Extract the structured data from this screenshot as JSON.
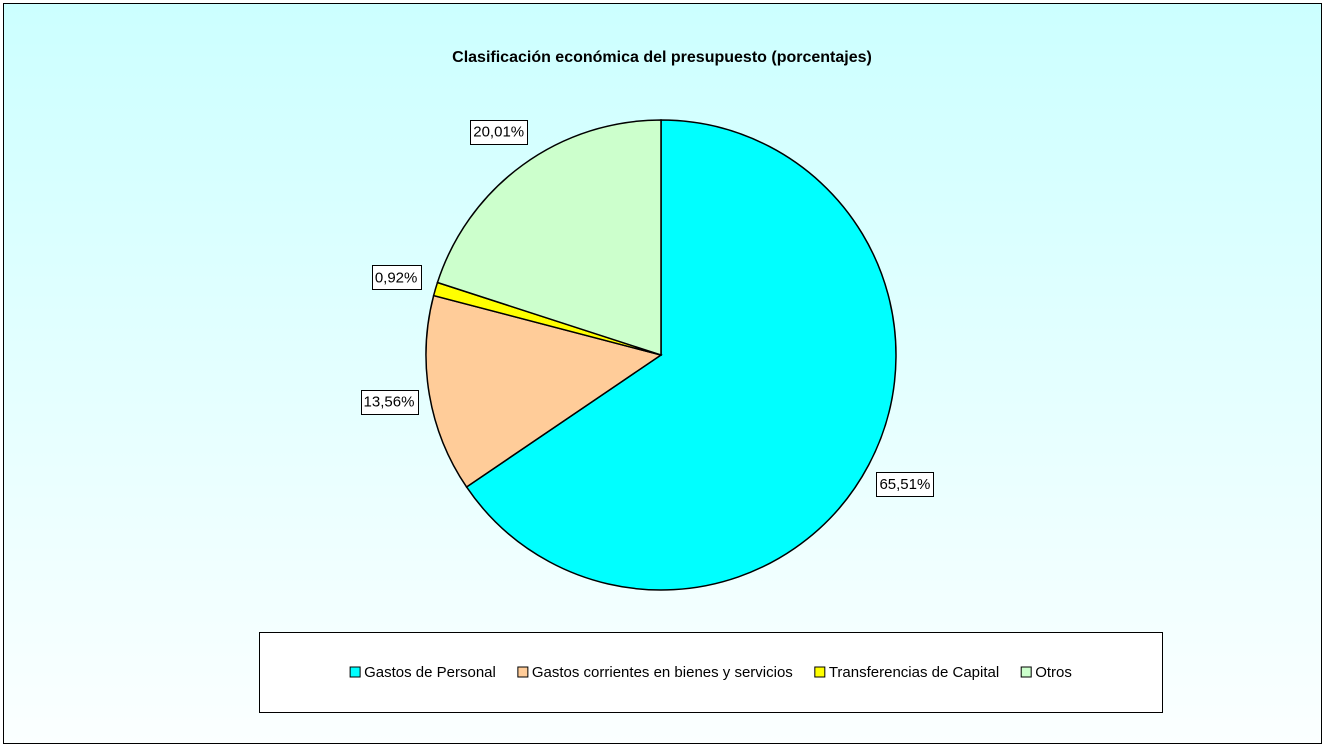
{
  "chart_data": {
    "type": "pie",
    "title": "Clasificación económica del presupuesto (porcentajes)",
    "categories": [
      "Gastos de Personal",
      "Gastos corrientes en bienes y servicios",
      "Transferencias de Capital",
      "Otros"
    ],
    "values": [
      65.51,
      13.56,
      0.92,
      20.01
    ],
    "value_labels": [
      "65,51%",
      "13,56%",
      "0,92%",
      "20,01%"
    ],
    "colors": [
      "#00ffff",
      "#ffcc99",
      "#ffff00",
      "#ccffcc"
    ],
    "legend": "bottom"
  }
}
